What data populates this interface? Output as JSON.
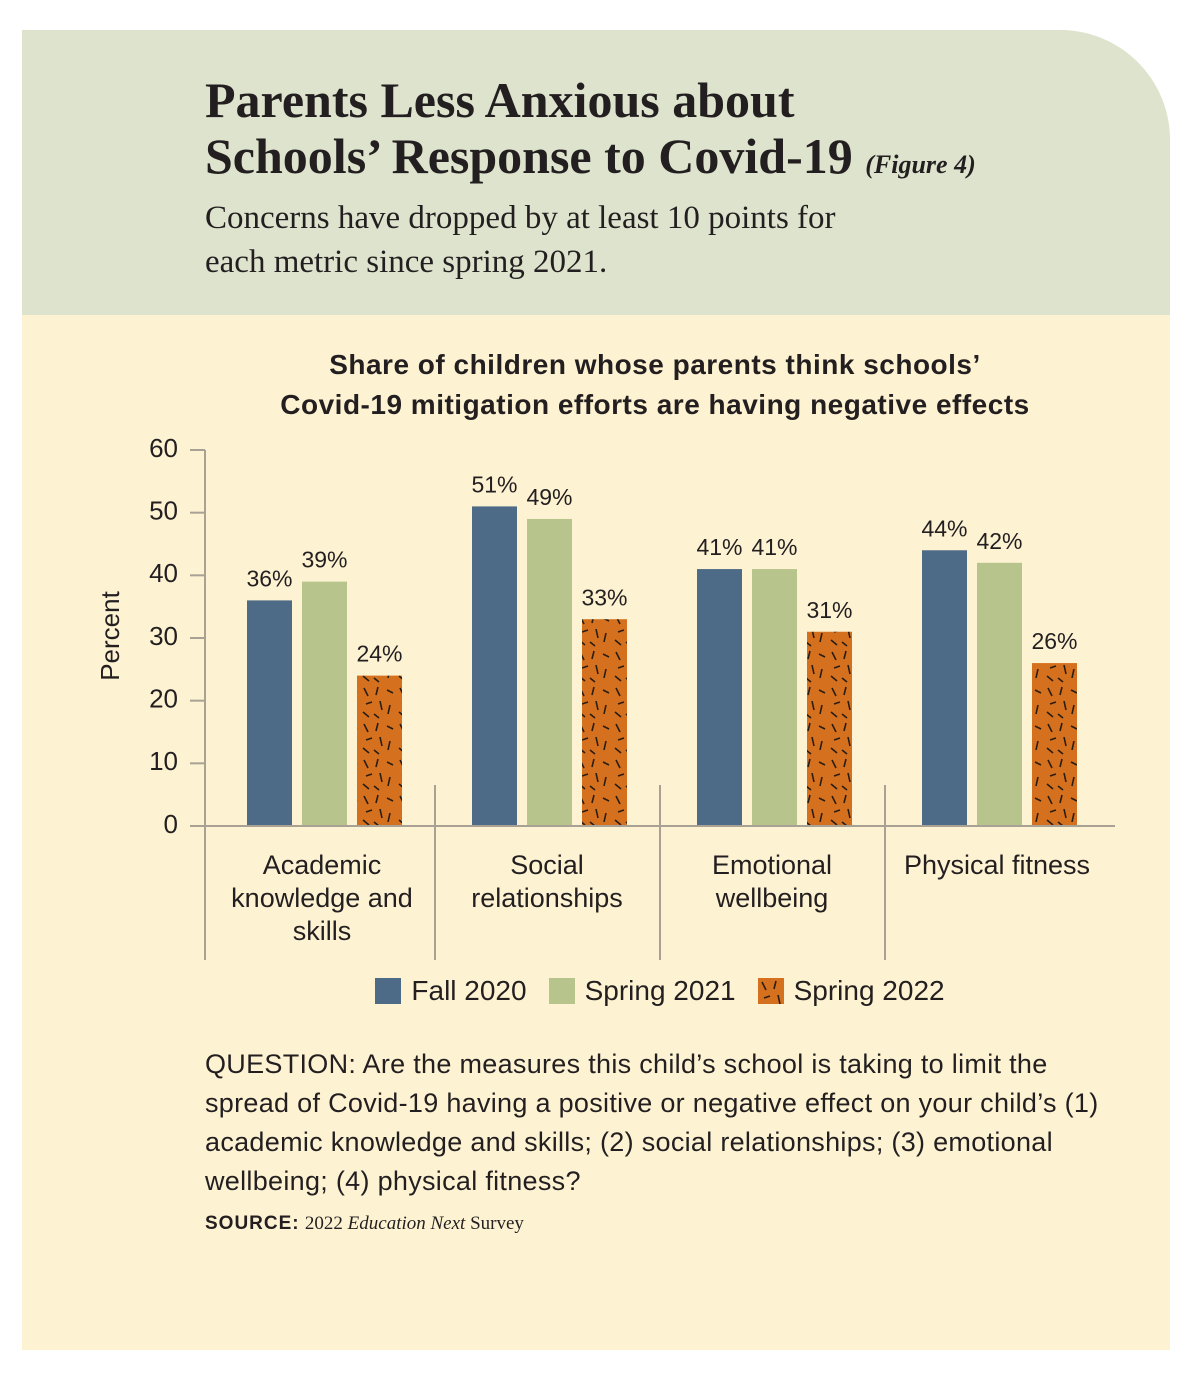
{
  "chart_data": {
    "type": "bar",
    "header_title_lines": [
      "Parents Less Anxious about",
      "Schools’ Response to Covid-19"
    ],
    "figure_note": "(Figure 4)",
    "subtitle_lines": [
      "Concerns have dropped by at least 10 points for",
      "each metric since spring 2021."
    ],
    "title_lines": [
      "Share of children whose parents think schools’",
      "Covid-19 mitigation efforts are having negative effects"
    ],
    "ylabel": "Percent",
    "categories": [
      "Academic knowledge and skills",
      "Social relationships",
      "Emotional wellbeing",
      "Physical fitness"
    ],
    "series": [
      {
        "name": "Fall 2020",
        "color": "#4d6a86",
        "values": [
          36,
          51,
          41,
          44
        ],
        "value_labels": [
          "36%",
          "51%",
          "41%",
          "44%"
        ]
      },
      {
        "name": "Spring 2021",
        "color": "#b7c48b",
        "values": [
          39,
          49,
          41,
          42
        ],
        "value_labels": [
          "39%",
          "49%",
          "41%",
          "42%"
        ]
      },
      {
        "name": "Spring 2022",
        "color": "#d5701f",
        "pattern": "dashes",
        "values": [
          24,
          33,
          31,
          26
        ],
        "value_labels": [
          "24%",
          "33%",
          "31%",
          "26%"
        ]
      }
    ],
    "ylim": [
      0,
      60
    ],
    "yticks": [
      0,
      10,
      20,
      30,
      40,
      50,
      60
    ],
    "question": "QUESTION: Are the measures this child’s school is taking to limit the spread of Covid-19 having a positive or negative effect on your child’s (1) academic knowledge and skills; (2) social relationships; (3) emotional wellbeing; (4) physical fitness?",
    "source_label": "SOURCE:",
    "source_parts": [
      "2022",
      "Education Next",
      "Survey"
    ]
  }
}
